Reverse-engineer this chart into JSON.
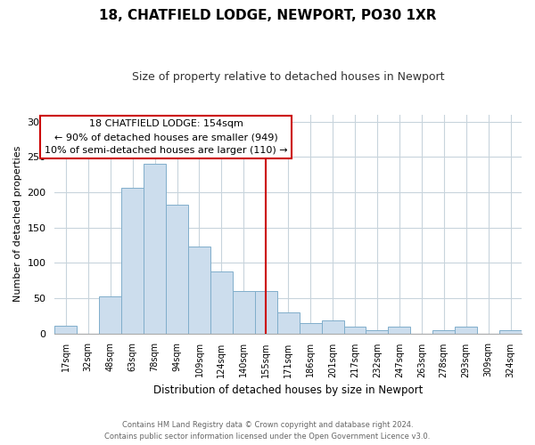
{
  "title": "18, CHATFIELD LODGE, NEWPORT, PO30 1XR",
  "subtitle": "Size of property relative to detached houses in Newport",
  "xlabel": "Distribution of detached houses by size in Newport",
  "ylabel": "Number of detached properties",
  "bar_labels": [
    "17sqm",
    "32sqm",
    "48sqm",
    "63sqm",
    "78sqm",
    "94sqm",
    "109sqm",
    "124sqm",
    "140sqm",
    "155sqm",
    "171sqm",
    "186sqm",
    "201sqm",
    "217sqm",
    "232sqm",
    "247sqm",
    "263sqm",
    "278sqm",
    "293sqm",
    "309sqm",
    "324sqm"
  ],
  "bar_values": [
    11,
    0,
    52,
    206,
    240,
    182,
    123,
    88,
    60,
    60,
    30,
    15,
    19,
    10,
    5,
    10,
    0,
    4,
    10,
    0,
    4
  ],
  "bar_color": "#ccdded",
  "bar_edge_color": "#80aecb",
  "vline_x_index": 9,
  "vline_color": "#cc0000",
  "annotation_title": "18 CHATFIELD LODGE: 154sqm",
  "annotation_line1": "← 90% of detached houses are smaller (949)",
  "annotation_line2": "10% of semi-detached houses are larger (110) →",
  "annotation_box_color": "#ffffff",
  "annotation_border_color": "#cc0000",
  "ylim": [
    0,
    310
  ],
  "yticks": [
    0,
    50,
    100,
    150,
    200,
    250,
    300
  ],
  "footer_line1": "Contains HM Land Registry data © Crown copyright and database right 2024.",
  "footer_line2": "Contains public sector information licensed under the Open Government Licence v3.0.",
  "bg_color": "#ffffff",
  "grid_color": "#c8d4dc"
}
